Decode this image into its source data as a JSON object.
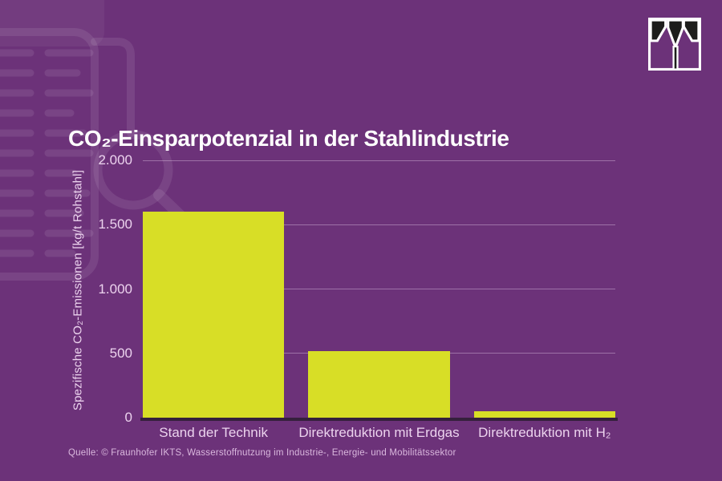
{
  "page": {
    "background_color": "#6c3279"
  },
  "header": {
    "title": "CO₂-Einsparpotenzial in der Stahlindustrie",
    "title_color": "#ffffff"
  },
  "logo": {
    "name": "fraunhofer-ikts-logo",
    "square_color": "#ffffff",
    "glyph_color": "#1d1d1b"
  },
  "decorations": {
    "watermark": "document-with-magnifier-watermark",
    "watermark_color": "rgba(255,255,255,0.09)"
  },
  "chart_data": {
    "type": "bar",
    "title": "CO₂-Einsparpotenzial in der Stahlindustrie",
    "categories": [
      "Stand der Technik",
      "Direktreduktion mit Erdgas",
      "Direktreduktion mit H₂"
    ],
    "values": [
      1600,
      520,
      50
    ],
    "xlabel": "",
    "ylabel": "Spezifische CO₂-Emissionen [kg/t Rohstahl]",
    "unit": "kg/t Rohstahl",
    "ylim": [
      0,
      2000
    ],
    "yticks": [
      {
        "value": 0,
        "label": "0"
      },
      {
        "value": 500,
        "label": "500"
      },
      {
        "value": 1000,
        "label": "1.000"
      },
      {
        "value": 1500,
        "label": "1.500"
      },
      {
        "value": 2000,
        "label": "2.000"
      }
    ],
    "grid": true,
    "legend": false,
    "bar_color": "#d8de26",
    "gridline_color": "rgba(240,216,243,0.38)",
    "baseline_color": "#35203c",
    "tick_text_color": "#ecd3ee"
  },
  "footer": {
    "source": "Quelle: © Fraunhofer IKTS, Wasserstoffnutzung im Industrie-, Energie- und Mobilitätssektor"
  }
}
